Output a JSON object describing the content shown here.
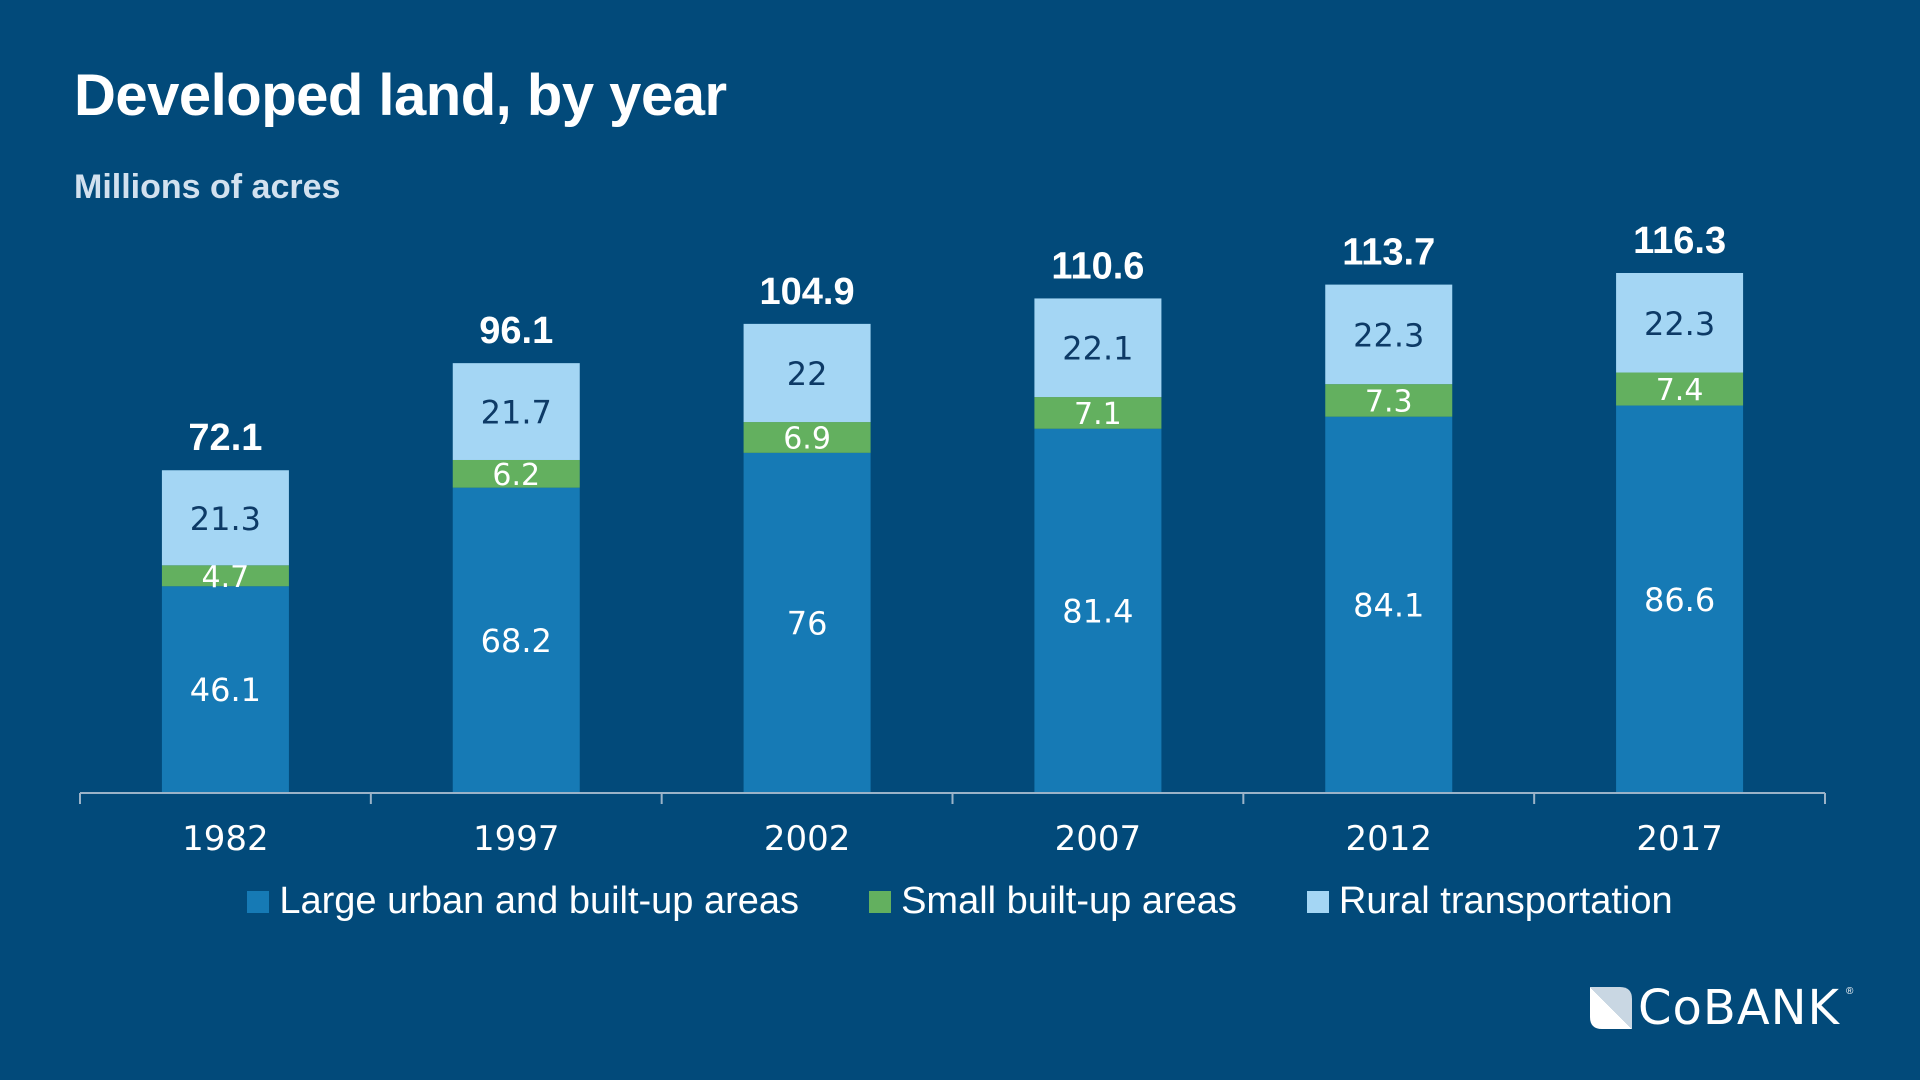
{
  "title": "Developed land, by year",
  "subtitle": "Millions of acres",
  "colors": {
    "background": "#024a7a",
    "large_urban": "#167ab5",
    "small_builtup": "#63b05f",
    "rural_transport": "#a4d6f4",
    "axis": "#9bb3c8"
  },
  "logo": {
    "text": "CoBANK",
    "registered": "®",
    "icon": "cobank-logo-icon"
  },
  "chart_data": {
    "type": "bar",
    "stacked": true,
    "title": "Developed land, by year",
    "subtitle": "Millions of acres",
    "xlabel": "",
    "ylabel": "Millions of acres",
    "categories": [
      "1982",
      "1997",
      "2002",
      "2007",
      "2012",
      "2017"
    ],
    "series": [
      {
        "name": "Large urban and built-up areas",
        "values": [
          46.1,
          68.2,
          76,
          81.4,
          84.1,
          86.6
        ],
        "labels": [
          "46.1",
          "68.2",
          "76",
          "81.4",
          "84.1",
          "86.6"
        ]
      },
      {
        "name": "Small built-up areas",
        "values": [
          4.7,
          6.2,
          6.9,
          7.1,
          7.3,
          7.4
        ],
        "labels": [
          "4.7",
          "6.2",
          "6.9",
          "7.1",
          "7.3",
          "7.4"
        ]
      },
      {
        "name": "Rural transportation",
        "values": [
          21.3,
          21.7,
          22,
          22.1,
          22.3,
          22.3
        ],
        "labels": [
          "21.3",
          "21.7",
          "22",
          "22.1",
          "22.3",
          "22.3"
        ]
      }
    ],
    "totals": [
      72.1,
      96.1,
      104.9,
      110.6,
      113.7,
      116.3
    ],
    "total_labels": [
      "72.1",
      "96.1",
      "104.9",
      "110.6",
      "113.7",
      "116.3"
    ],
    "ylim": [
      0,
      116.3
    ],
    "grid": false,
    "y_axis_visible": false,
    "legend_position": "bottom"
  }
}
